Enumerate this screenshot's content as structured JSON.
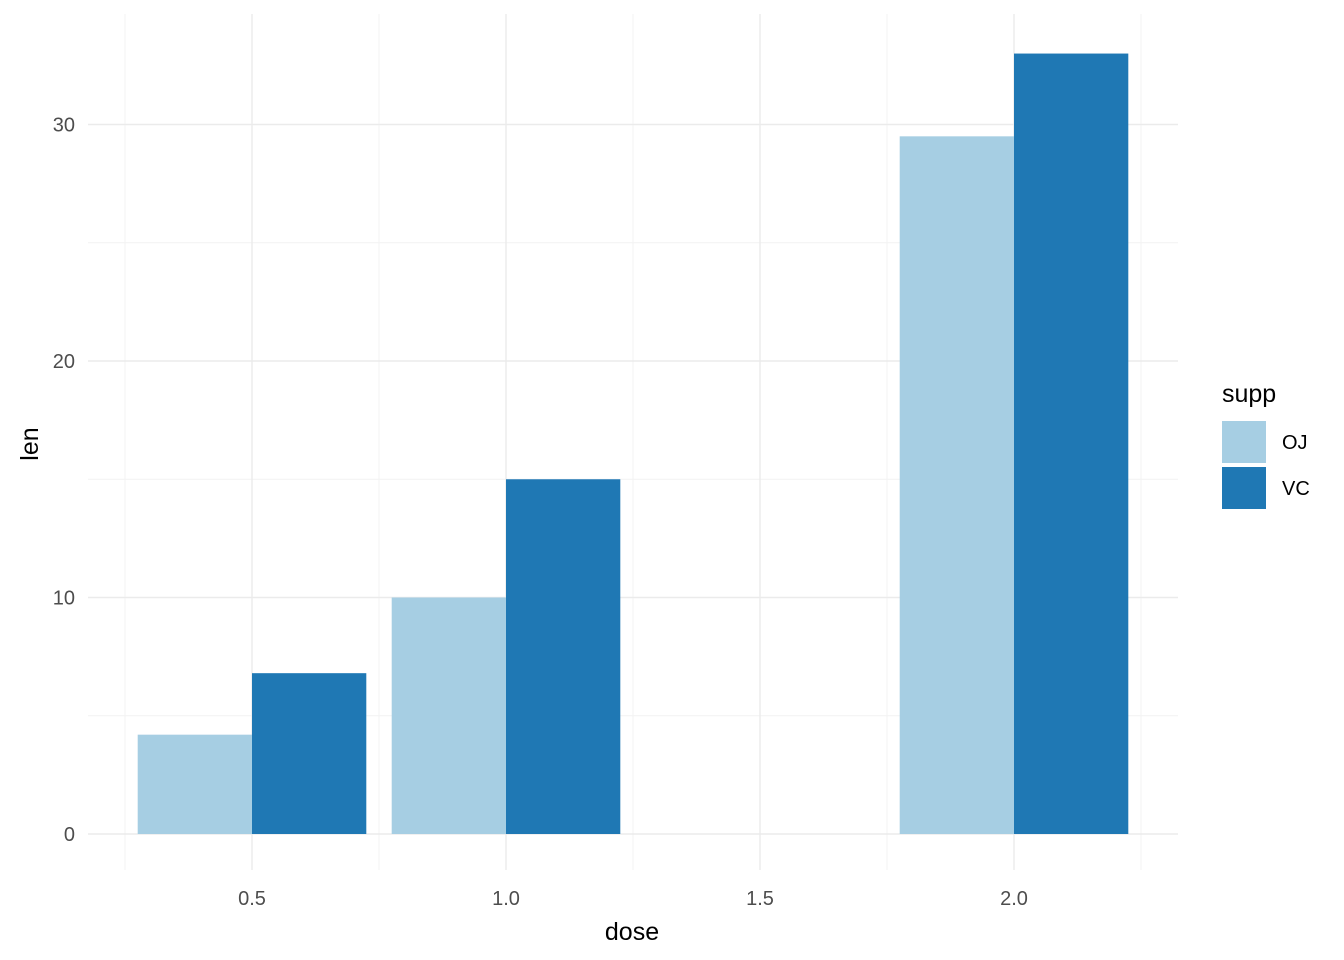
{
  "chart_data": {
    "type": "bar",
    "layout": "dodge",
    "x_axis_type": "continuous",
    "xlabel": "dose",
    "ylabel": "len",
    "x": [
      0.5,
      1.0,
      2.0
    ],
    "series": [
      {
        "name": "OJ",
        "color": "#a6cee3",
        "values": [
          4.2,
          10.0,
          29.5
        ]
      },
      {
        "name": "VC",
        "color": "#1f78b4",
        "values": [
          6.8,
          15.0,
          33.0
        ]
      }
    ],
    "xlim": [
      0.25,
      2.25
    ],
    "ylim": [
      0,
      33
    ],
    "x_ticks": [
      0.5,
      1.0,
      1.5,
      2.0
    ],
    "x_tick_labels": [
      "0.5",
      "1.0",
      "1.5",
      "2.0"
    ],
    "y_ticks": [
      0,
      10,
      20,
      30
    ],
    "y_tick_labels": [
      "0",
      "10",
      "20",
      "30"
    ],
    "grid": true,
    "legend": {
      "title": "supp",
      "position": "right"
    }
  }
}
